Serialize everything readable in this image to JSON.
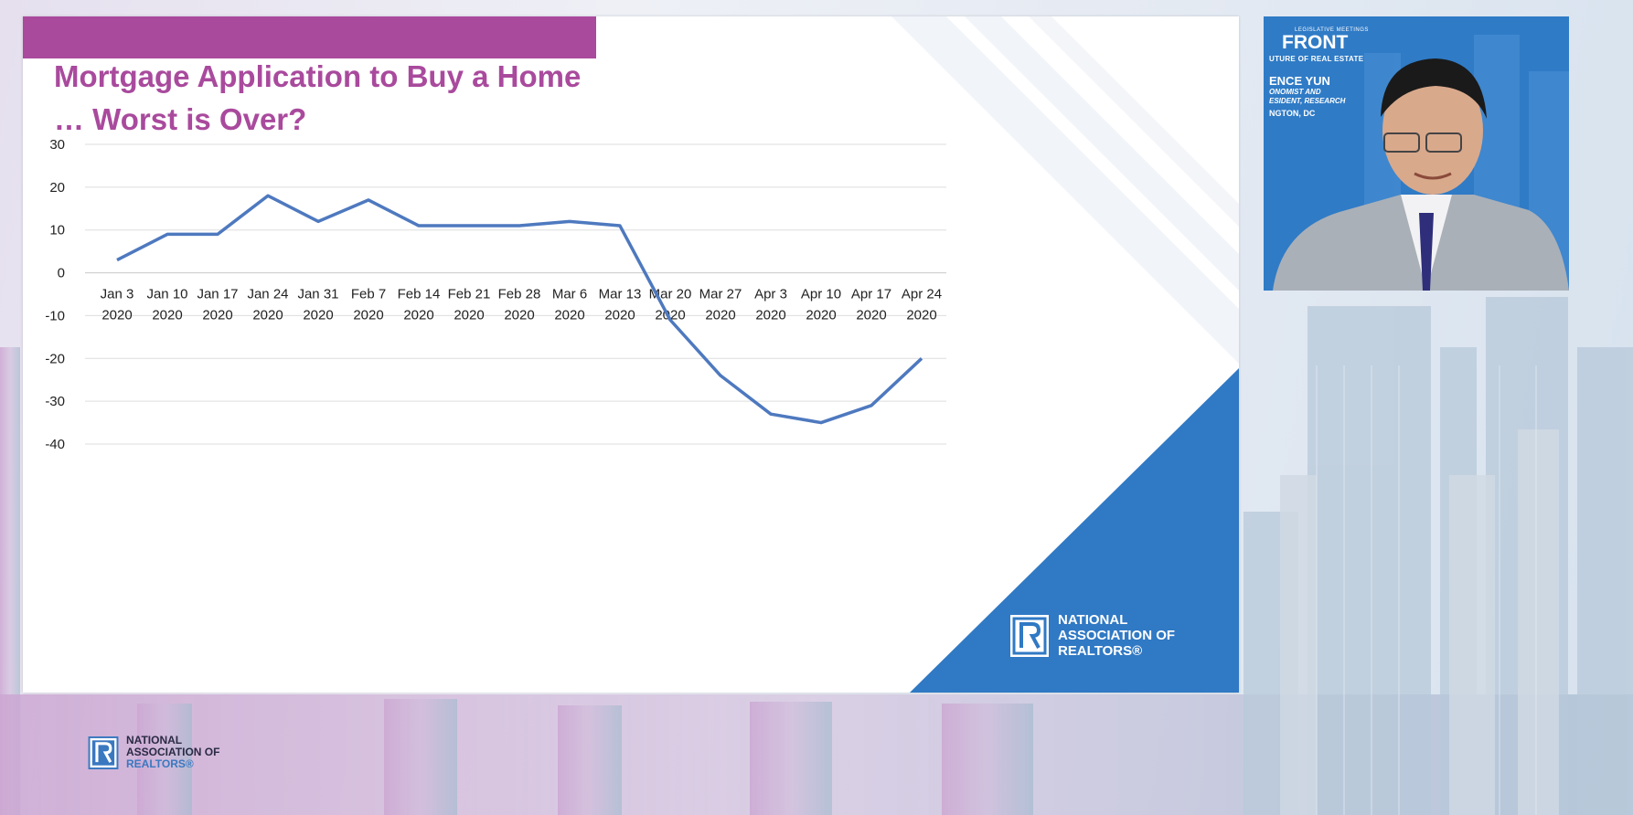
{
  "slide": {
    "title_line1": "Mortgage Application to Buy a Home",
    "title_line2": "… Worst is Over?",
    "logo_line1": "NATIONAL",
    "logo_line2": "ASSOCIATION OF",
    "logo_line3": "REALTORS®"
  },
  "chart_data": {
    "type": "line",
    "title": "Mortgage Application to Buy a Home … Worst is Over?",
    "xlabel": "",
    "ylabel": "",
    "ylim": [
      -40,
      30
    ],
    "yticks": [
      30,
      20,
      10,
      0,
      -10,
      -20,
      -30,
      -40
    ],
    "grid": true,
    "legend": "none",
    "categories": [
      [
        "Jan 3",
        "2020"
      ],
      [
        "Jan 10",
        "2020"
      ],
      [
        "Jan 17",
        "2020"
      ],
      [
        "Jan 24",
        "2020"
      ],
      [
        "Jan 31",
        "2020"
      ],
      [
        "Feb 7",
        "2020"
      ],
      [
        "Feb 14",
        "2020"
      ],
      [
        "Feb 21",
        "2020"
      ],
      [
        "Feb 28",
        "2020"
      ],
      [
        "Mar 6",
        "2020"
      ],
      [
        "Mar 13",
        "2020"
      ],
      [
        "Mar 20",
        "2020"
      ],
      [
        "Mar 27",
        "2020"
      ],
      [
        "Apr 3",
        "2020"
      ],
      [
        "Apr 10",
        "2020"
      ],
      [
        "Apr 17",
        "2020"
      ],
      [
        "Apr 24",
        "2020"
      ]
    ],
    "series": [
      {
        "values": [
          3,
          9,
          9,
          18,
          12,
          17,
          11,
          11,
          11,
          12,
          11,
          -11,
          -24,
          -33,
          -35,
          -31,
          -20
        ]
      }
    ],
    "line_color": "#4e79bf"
  },
  "video": {
    "event_small": "LEGISLATIVE MEETINGS",
    "event_name": "FRONT",
    "event_sub": "UTURE OF REAL ESTATE",
    "speaker_name": "ENCE YUN",
    "speaker_title1": "ONOMIST AND",
    "speaker_title2": "ESIDENT, RESEARCH",
    "speaker_location": "NGTON, DC"
  },
  "page_logo": {
    "line1": "NATIONAL",
    "line2": "ASSOCIATION OF",
    "line3": "REALTORS®"
  },
  "colors": {
    "accent": "#a94a9d",
    "brand_blue": "#3079c4",
    "line": "#4e79bf"
  }
}
